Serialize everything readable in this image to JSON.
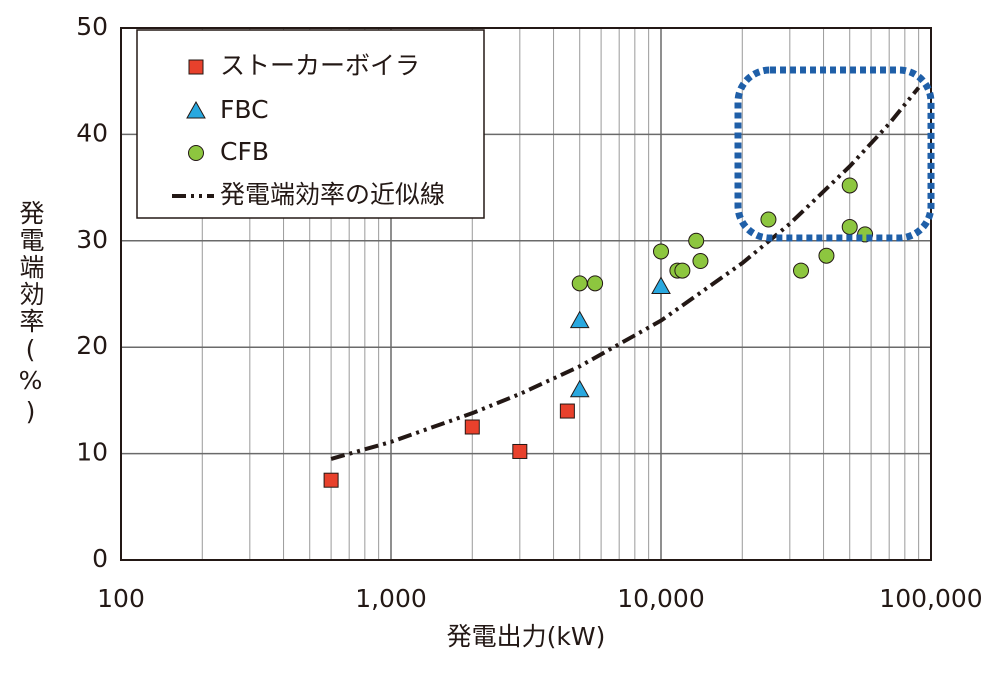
{
  "chart_data": {
    "type": "scatter",
    "x_label": "発電出力(kW)",
    "y_label": "発電端効率(%)",
    "log_x": true,
    "grid": true,
    "xlim": [
      100,
      100000
    ],
    "xticks": [
      100,
      {
        "value": 1000,
        "label": "1,000"
      },
      {
        "value": 10000,
        "label": "10,000"
      },
      {
        "value": 100000,
        "label": "100,000"
      }
    ],
    "ylim": [
      0,
      50
    ],
    "yticks": [
      0,
      10,
      20,
      30,
      40,
      50
    ],
    "series": [
      {
        "name": "ストーカーボイラ",
        "color": "#e8412c",
        "marker": "square",
        "x": [
          600,
          2000,
          3000,
          4500
        ],
        "values": [
          7.5,
          12.5,
          10.2,
          14
        ]
      },
      {
        "name": "FBC",
        "color": "#29a8df",
        "marker": "triangle",
        "x": [
          5000,
          5000,
          10000
        ],
        "values": [
          22.5,
          16,
          25.7
        ]
      },
      {
        "name": "CFB",
        "color": "#8dc63f",
        "marker": "circle",
        "x": [
          5000,
          5700,
          10000,
          11500,
          12000,
          13500,
          14000,
          25000,
          33000,
          41000,
          50000,
          50000,
          57000
        ],
        "values": [
          26,
          26,
          29,
          27.2,
          27.2,
          30,
          28.1,
          32,
          27.2,
          28.6,
          35.2,
          31.3,
          30.6
        ]
      },
      {
        "name": "発電端効率の近似線",
        "color": "#231815",
        "marker": "dash-dot-dot",
        "x": [
          600,
          1000,
          2000,
          3000,
          5000,
          10000,
          20000,
          30000,
          50000,
          70000,
          90000
        ],
        "values": [
          9.5,
          11.1,
          13.8,
          15.6,
          18.2,
          22.5,
          27.9,
          31.6,
          37,
          41,
          44.4
        ]
      }
    ]
  }
}
